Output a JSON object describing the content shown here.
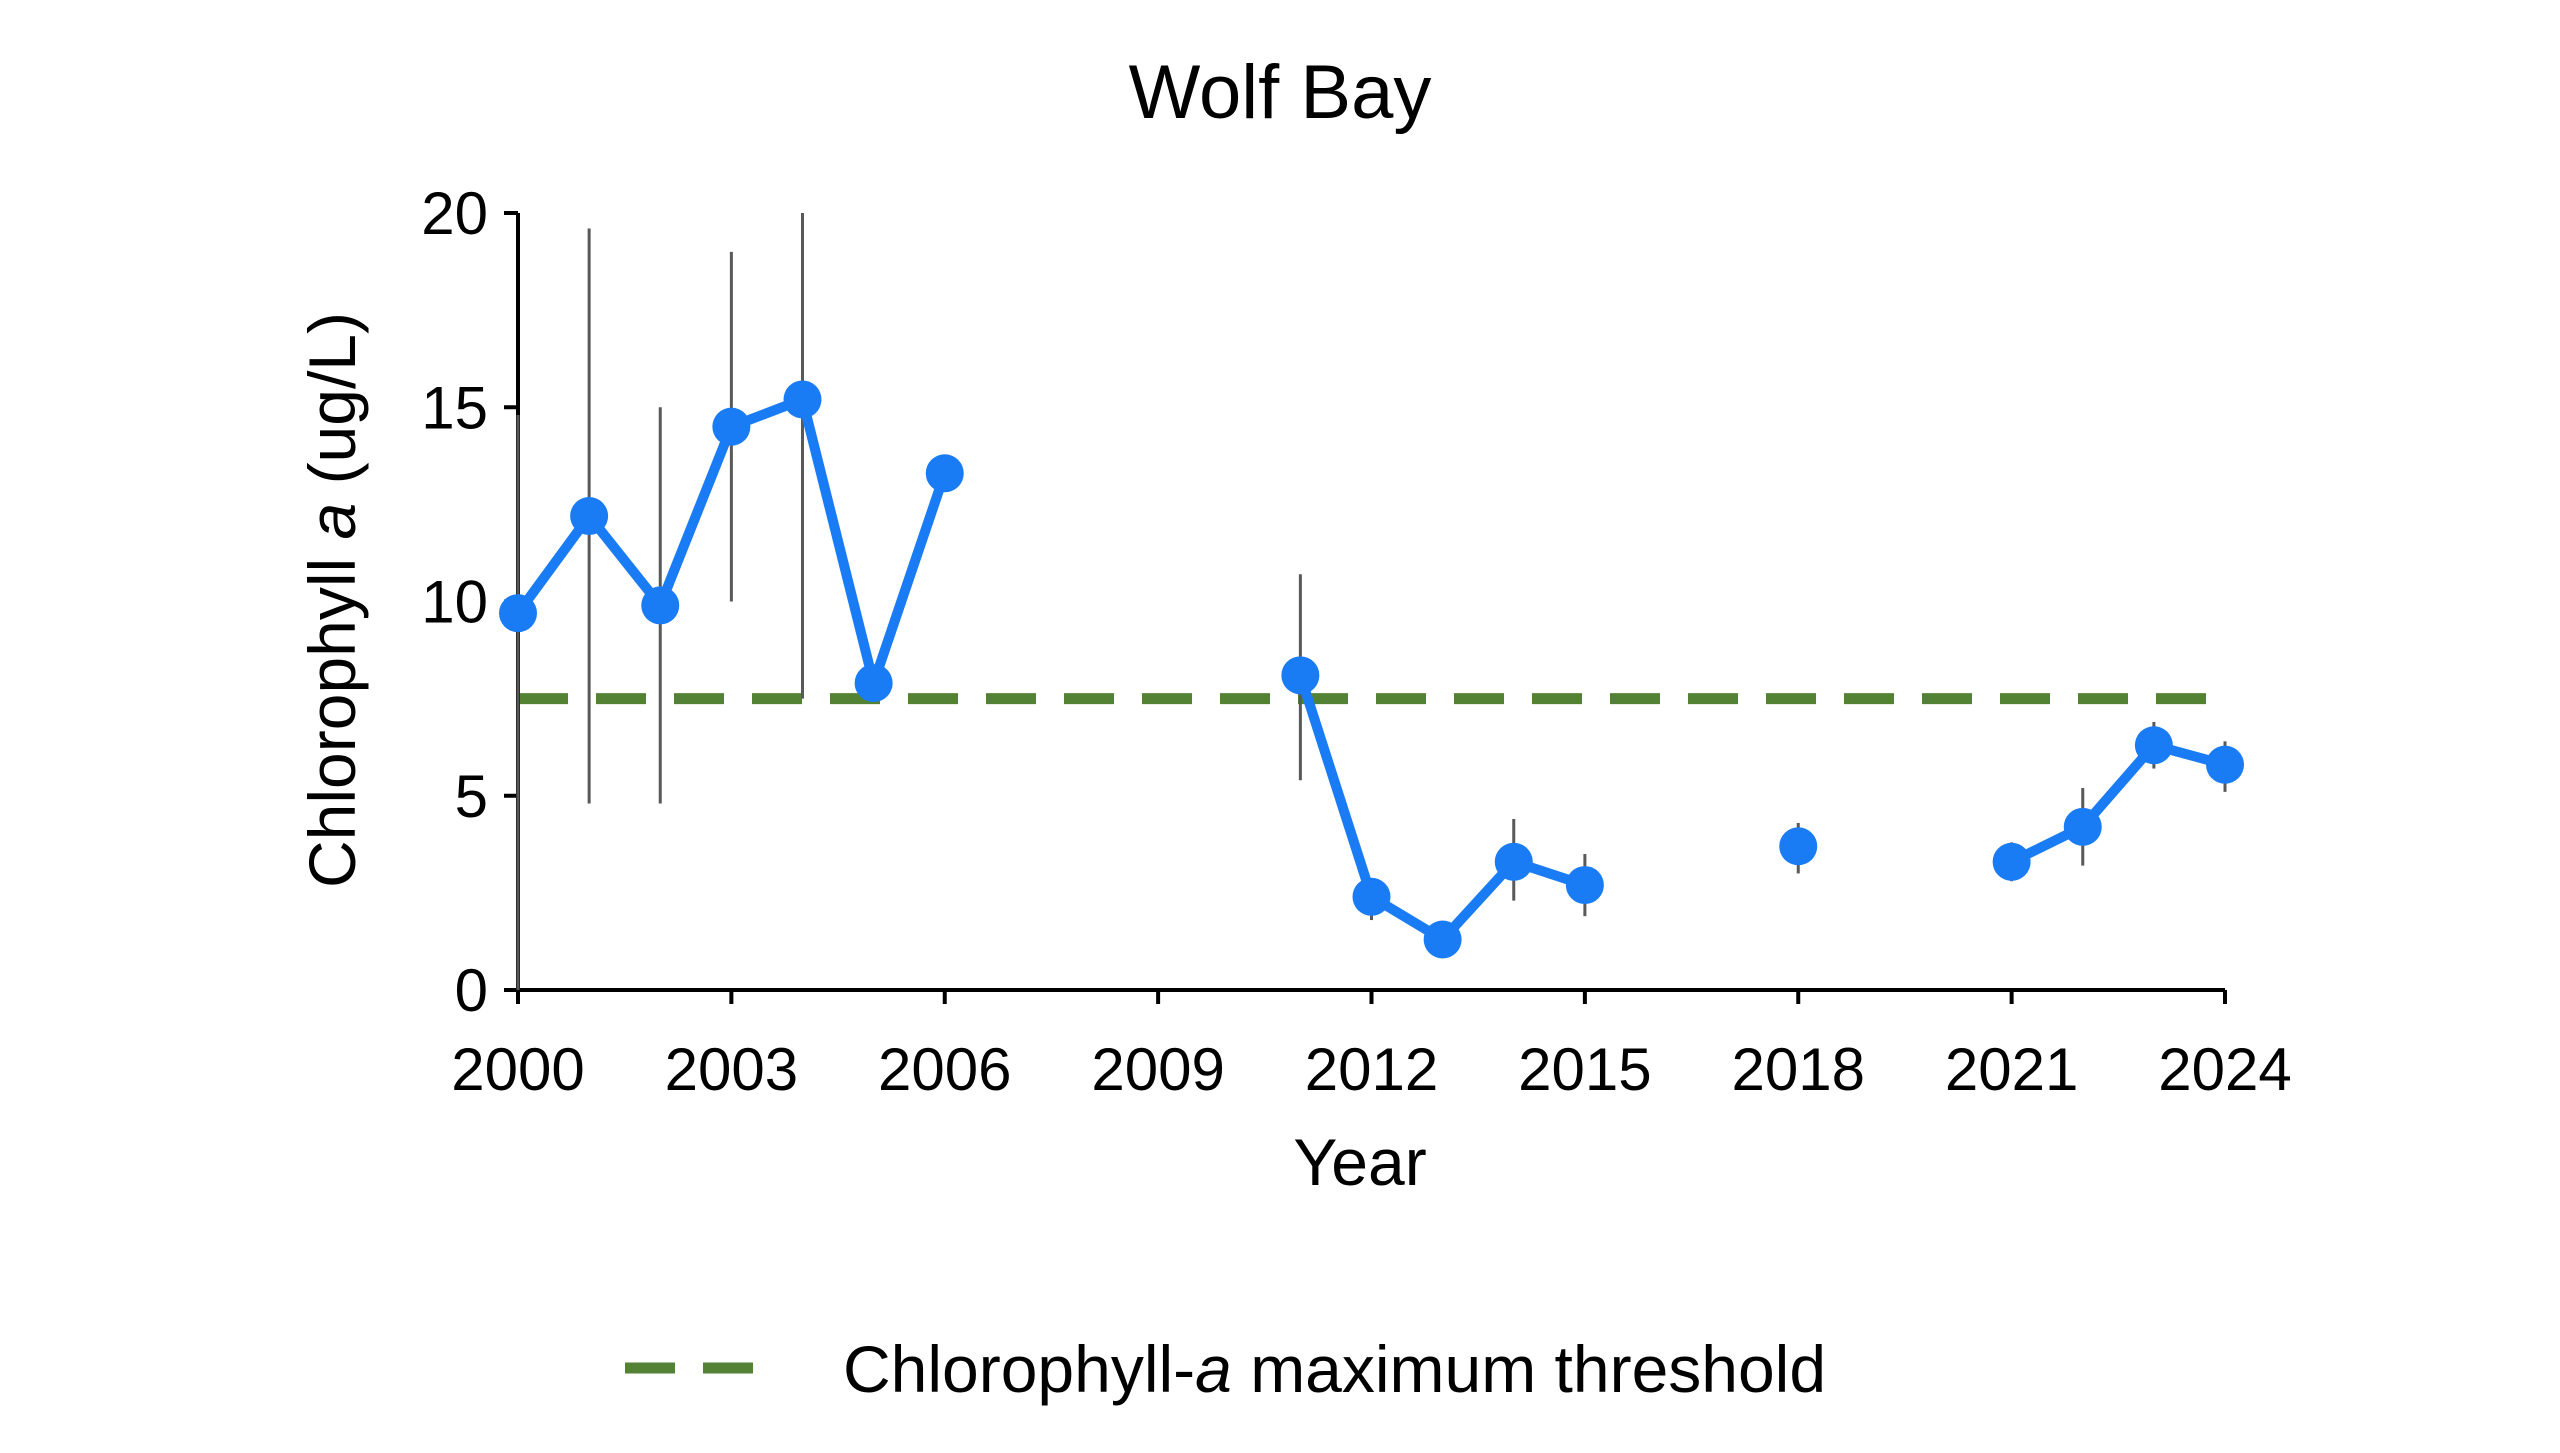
{
  "chart_data": {
    "type": "line",
    "title": "Wolf Bay",
    "xlabel": "Year",
    "ylabel": {
      "prefix": "Chlorophyll ",
      "italic": "a",
      "suffix": " (ug/L)"
    },
    "xlim": [
      2000,
      2024
    ],
    "ylim": [
      0,
      20
    ],
    "x_ticks": [
      2000,
      2003,
      2006,
      2009,
      2012,
      2015,
      2018,
      2021,
      2024
    ],
    "y_ticks": [
      0,
      5,
      10,
      15,
      20
    ],
    "grid": false,
    "legend_position": "bottom",
    "series": [
      {
        "name": "",
        "color": "#1a7cf5",
        "points": [
          {
            "x": 2000,
            "y": 9.7,
            "err_low": 0.0,
            "err_high": 14.8
          },
          {
            "x": 2001,
            "y": 12.2,
            "err_low": 4.8,
            "err_high": 19.6
          },
          {
            "x": 2002,
            "y": 9.9,
            "err_low": 4.8,
            "err_high": 15.0
          },
          {
            "x": 2003,
            "y": 14.5,
            "err_low": 10.0,
            "err_high": 19.0
          },
          {
            "x": 2004,
            "y": 15.2,
            "err_low": 7.5,
            "err_high": 20.0
          },
          {
            "x": 2005,
            "y": 7.9,
            "err_low": 7.6,
            "err_high": 8.2
          },
          {
            "x": 2006,
            "y": 13.3,
            "err_low": 13.0,
            "err_high": 13.6
          },
          {
            "x": 2011,
            "y": 8.1,
            "err_low": 5.4,
            "err_high": 10.7
          },
          {
            "x": 2012,
            "y": 2.4,
            "err_low": 1.8,
            "err_high": 2.8
          },
          {
            "x": 2013,
            "y": 1.3,
            "err_low": 1.0,
            "err_high": 1.6
          },
          {
            "x": 2014,
            "y": 3.3,
            "err_low": 2.3,
            "err_high": 4.4
          },
          {
            "x": 2015,
            "y": 2.7,
            "err_low": 1.9,
            "err_high": 3.5
          },
          {
            "x": 2018,
            "y": 3.7,
            "err_low": 3.0,
            "err_high": 4.3
          },
          {
            "x": 2021,
            "y": 3.3,
            "err_low": 2.8,
            "err_high": 3.8
          },
          {
            "x": 2022,
            "y": 4.2,
            "err_low": 3.2,
            "err_high": 5.2
          },
          {
            "x": 2023,
            "y": 6.3,
            "err_low": 5.7,
            "err_high": 6.9
          },
          {
            "x": 2024,
            "y": 5.8,
            "err_low": 5.1,
            "err_high": 6.4
          }
        ],
        "segments": [
          [
            2000,
            2001,
            2002,
            2003,
            2004,
            2005,
            2006
          ],
          [
            2011,
            2012,
            2013,
            2014,
            2015
          ],
          [
            2018
          ],
          [
            2021,
            2022,
            2023,
            2024
          ]
        ]
      }
    ],
    "threshold": {
      "name": {
        "prefix": "Chlorophyll-",
        "italic": "a",
        "suffix": " maximum threshold"
      },
      "value": 7.5,
      "color": "#548235",
      "style": "dashed"
    },
    "errorbar_color": "#595959",
    "axis_color": "#000000"
  }
}
